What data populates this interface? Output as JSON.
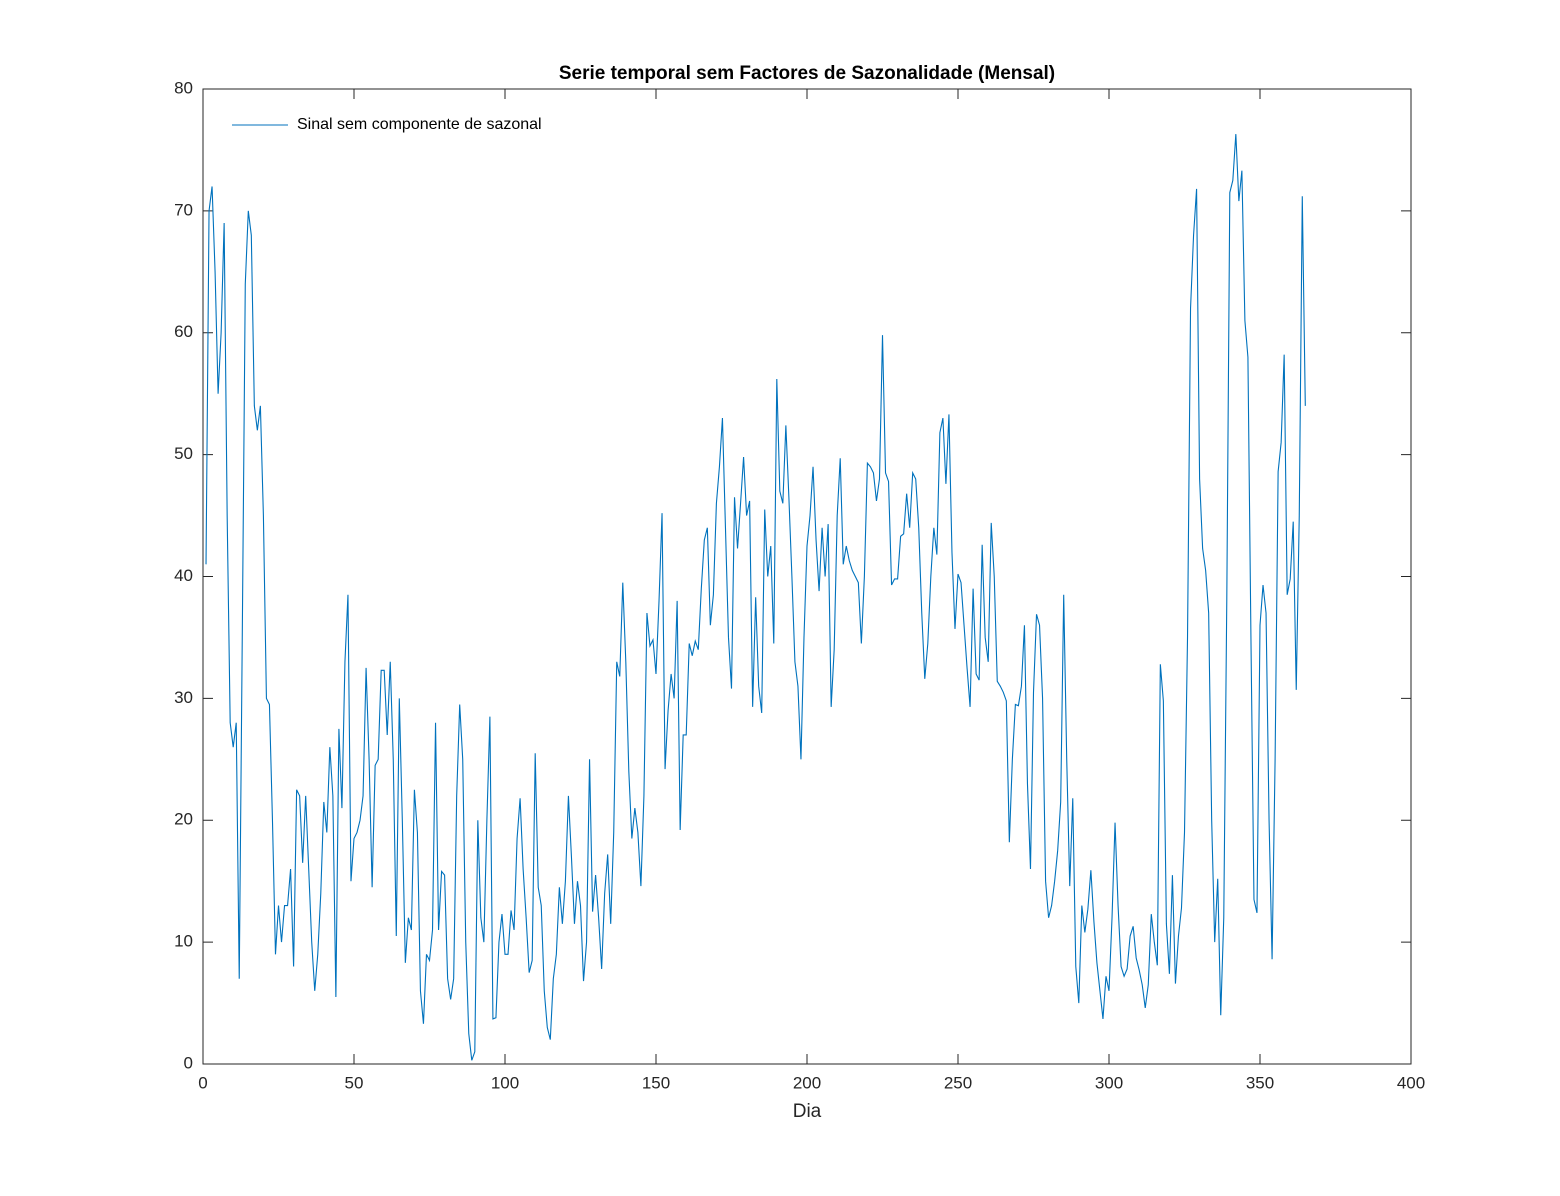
{
  "chart_data": {
    "type": "line",
    "title": "Serie temporal sem Factores de Sazonalidade (Mensal)",
    "x_label": "Dia",
    "legend": "northwest",
    "xlim": [
      0,
      400
    ],
    "xticks": [
      0,
      50,
      100,
      150,
      200,
      250,
      300,
      350,
      400
    ],
    "ylim": [
      0,
      80
    ],
    "yticks": [
      0,
      10,
      20,
      30,
      40,
      50,
      60,
      70,
      80
    ],
    "x": [
      1,
      2,
      3,
      4,
      5,
      6,
      7,
      8,
      9,
      10,
      11,
      12,
      13,
      14,
      15,
      16,
      17,
      18,
      19,
      20,
      21,
      22,
      23,
      24,
      25,
      26,
      27,
      28,
      29,
      30,
      31,
      32,
      33,
      34,
      35,
      36,
      37,
      38,
      39,
      40,
      41,
      42,
      43,
      44,
      45,
      46,
      47,
      48,
      49,
      50,
      51,
      52,
      53,
      54,
      55,
      56,
      57,
      58,
      59,
      60,
      61,
      62,
      63,
      64,
      65,
      66,
      67,
      68,
      69,
      70,
      71,
      72,
      73,
      74,
      75,
      76,
      77,
      78,
      79,
      80,
      81,
      82,
      83,
      84,
      85,
      86,
      87,
      88,
      89,
      90,
      91,
      92,
      93,
      94,
      95,
      96,
      97,
      98,
      99,
      100,
      101,
      102,
      103,
      104,
      105,
      106,
      107,
      108,
      109,
      110,
      111,
      112,
      113,
      114,
      115,
      116,
      117,
      118,
      119,
      120,
      121,
      122,
      123,
      124,
      125,
      126,
      127,
      128,
      129,
      130,
      131,
      132,
      133,
      134,
      135,
      136,
      137,
      138,
      139,
      140,
      141,
      142,
      143,
      144,
      145,
      146,
      147,
      148,
      149,
      150,
      151,
      152,
      153,
      154,
      155,
      156,
      157,
      158,
      159,
      160,
      161,
      162,
      163,
      164,
      165,
      166,
      167,
      168,
      169,
      170,
      171,
      172,
      173,
      174,
      175,
      176,
      177,
      178,
      179,
      180,
      181,
      182,
      183,
      184,
      185,
      186,
      187,
      188,
      189,
      190,
      191,
      192,
      193,
      194,
      195,
      196,
      197,
      198,
      199,
      200,
      201,
      202,
      203,
      204,
      205,
      206,
      207,
      208,
      209,
      210,
      211,
      212,
      213,
      214,
      215,
      216,
      217,
      218,
      219,
      220,
      221,
      222,
      223,
      224,
      225,
      226,
      227,
      228,
      229,
      230,
      231,
      232,
      233,
      234,
      235,
      236,
      237,
      238,
      239,
      240,
      241,
      242,
      243,
      244,
      245,
      246,
      247,
      248,
      249,
      250,
      251,
      252,
      253,
      254,
      255,
      256,
      257,
      258,
      259,
      260,
      261,
      262,
      263,
      264,
      265,
      266,
      267,
      268,
      269,
      270,
      271,
      272,
      273,
      274,
      275,
      276,
      277,
      278,
      279,
      280,
      281,
      282,
      283,
      284,
      285,
      286,
      287,
      288,
      289,
      290,
      291,
      292,
      293,
      294,
      295,
      296,
      297,
      298,
      299,
      300,
      301,
      302,
      303,
      304,
      305,
      306,
      307,
      308,
      309,
      310,
      311,
      312,
      313,
      314,
      315,
      316,
      317,
      318,
      319,
      320,
      321,
      322,
      323,
      324,
      325,
      326,
      327,
      328,
      329,
      330,
      331,
      332,
      333,
      334,
      335,
      336,
      337,
      338,
      339,
      340,
      341,
      342,
      343,
      344,
      345,
      346,
      347,
      348,
      349,
      350,
      351,
      352,
      353,
      354,
      355,
      356,
      357,
      358,
      359,
      360,
      361,
      362,
      363,
      364,
      365
    ],
    "series": [
      {
        "name": "Sinal sem componente de sazonal",
        "color": "#0072bd",
        "values": [
          41,
          70,
          72,
          65,
          55,
          60,
          69,
          45,
          28,
          26,
          28,
          7,
          35,
          64,
          70,
          68,
          54,
          52,
          54,
          45,
          30,
          29.5,
          20,
          9,
          13,
          10,
          13,
          13,
          16,
          8,
          22.5,
          22,
          16.5,
          22,
          16,
          10,
          6,
          9,
          14,
          21.5,
          19,
          26,
          22,
          5.5,
          27.5,
          21,
          33,
          38.5,
          15,
          18.5,
          19,
          20,
          22,
          32.5,
          25,
          14.5,
          24.5,
          25,
          32.3,
          32.3,
          27,
          33,
          25,
          10.5,
          30,
          20,
          8.3,
          12,
          11,
          22.5,
          19,
          6,
          3.3,
          9,
          8.5,
          11,
          28,
          11,
          15.8,
          15.5,
          7,
          5.3,
          7,
          22,
          29.5,
          25,
          10,
          2.5,
          0.3,
          1,
          20,
          12,
          10,
          20,
          28.5,
          3.7,
          3.8,
          10,
          12.3,
          9,
          9,
          12.6,
          11,
          18.5,
          21.8,
          16,
          12,
          7.5,
          8.5,
          25.5,
          14.5,
          13,
          6,
          3,
          2,
          7,
          9,
          14.5,
          11.5,
          15,
          22,
          17,
          11.5,
          15,
          13,
          6.8,
          10,
          25,
          12.5,
          15.5,
          12,
          7.8,
          14,
          17.2,
          11.5,
          19,
          33,
          31.8,
          39.5,
          33,
          24,
          18.5,
          21,
          19,
          14.6,
          22,
          37,
          34.3,
          34.8,
          32,
          38,
          45.2,
          24.2,
          29,
          32,
          30,
          38,
          19.2,
          27,
          27,
          34.5,
          33.5,
          34.7,
          34,
          39,
          43,
          44,
          36,
          38.5,
          46,
          49,
          53,
          44,
          35,
          30.8,
          46.5,
          42.3,
          46,
          49.8,
          45,
          46.2,
          29.3,
          38.3,
          31,
          28.8,
          45.5,
          40,
          42.5,
          34.5,
          56.2,
          47,
          46,
          52.4,
          46.5,
          40,
          33,
          31,
          25,
          35,
          42.5,
          45,
          49,
          43,
          38.8,
          44,
          40,
          44.3,
          29.3,
          34,
          45,
          49.7,
          41,
          42.5,
          41.3,
          40.5,
          40,
          39.5,
          34.5,
          40,
          49.3,
          49,
          48.5,
          46.2,
          48,
          59.8,
          48.5,
          47.8,
          39.3,
          39.8,
          39.8,
          43.3,
          43.5,
          46.8,
          44,
          48.5,
          48,
          44,
          37,
          31.6,
          34.5,
          40,
          44,
          41.8,
          51.8,
          53,
          47.6,
          53.3,
          42,
          35.7,
          40.2,
          39.5,
          36,
          32.5,
          29.3,
          39,
          32,
          31.5,
          42.6,
          35,
          33,
          44.4,
          40,
          31.4,
          31,
          30.5,
          29.8,
          18.2,
          25,
          29.5,
          29.4,
          31,
          36,
          23,
          16,
          30.5,
          36.9,
          36,
          30,
          15,
          12,
          13,
          15,
          17.5,
          21.5,
          38.5,
          25,
          14.6,
          21.8,
          8,
          5,
          13,
          10.8,
          12.7,
          15.9,
          11.7,
          8.3,
          6,
          3.7,
          7.2,
          6,
          12,
          19.8,
          13,
          8,
          7.2,
          7.8,
          10.5,
          11.3,
          8.7,
          7.7,
          6.5,
          4.6,
          6.5,
          12.3,
          10,
          8.1,
          32.8,
          29.8,
          11.5,
          7.4,
          15.5,
          6.6,
          10.5,
          12.8,
          19,
          35,
          62,
          68,
          71.8,
          48,
          42.3,
          40.5,
          37,
          20,
          10,
          15.2,
          4,
          12,
          38,
          71.5,
          72.5,
          76.3,
          70.8,
          73.3,
          61,
          58,
          35,
          13.5,
          12.4,
          36,
          39.3,
          37,
          20,
          8.6,
          25,
          48.6,
          51,
          58.2,
          38.5,
          39.8,
          44.5,
          30.7,
          45,
          71.2,
          54
        ]
      }
    ]
  }
}
